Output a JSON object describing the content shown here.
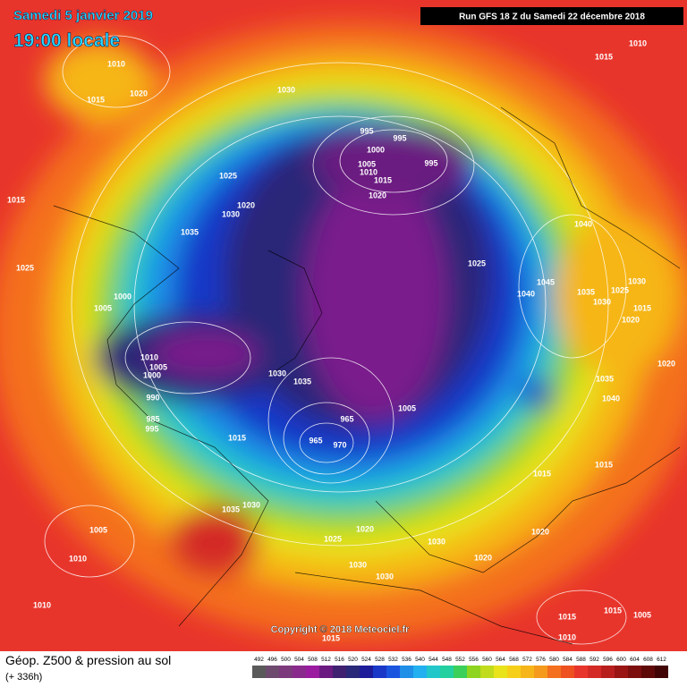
{
  "header": {
    "date": "Samedi 5 janvier 2019",
    "time": "19:00 locale",
    "run": "Run GFS 18 Z du Samedi 22 décembre 2018"
  },
  "isobar_labels": [
    "1010",
    "1020",
    "1015",
    "1030",
    "995",
    "995",
    "1000",
    "1005",
    "995",
    "1010",
    "1015",
    "1020",
    "1025",
    "1020",
    "1030",
    "1035",
    "1015",
    "1025",
    "1000",
    "1005",
    "1010",
    "1005",
    "1000",
    "990",
    "985",
    "995",
    "1015",
    "1030",
    "1035",
    "965",
    "970",
    "965",
    "1005",
    "1025",
    "1045",
    "1040",
    "1035",
    "1030",
    "1020",
    "1040",
    "1010",
    "1015",
    "1020",
    "1035",
    "1040",
    "1015",
    "1015",
    "1020",
    "1030",
    "1020",
    "1020",
    "1025",
    "1030",
    "1030",
    "1035",
    "1030",
    "1005",
    "1010",
    "1010",
    "1015",
    "1015",
    "1010",
    "1005",
    "1015",
    "1030",
    "1025",
    "1015"
  ],
  "footer": {
    "copyright": "Copyright © 2018 Meteociel.fr",
    "legend_title": "Géop. Z500 & pression au sol",
    "legend_subtitle": "(+ 336h)",
    "scale": [
      "492",
      "496",
      "500",
      "504",
      "508",
      "512",
      "516",
      "520",
      "524",
      "528",
      "532",
      "536",
      "540",
      "544",
      "548",
      "552",
      "556",
      "560",
      "564",
      "568",
      "572",
      "576",
      "580",
      "584",
      "588",
      "592",
      "596",
      "600",
      "604",
      "608",
      "612"
    ]
  }
}
